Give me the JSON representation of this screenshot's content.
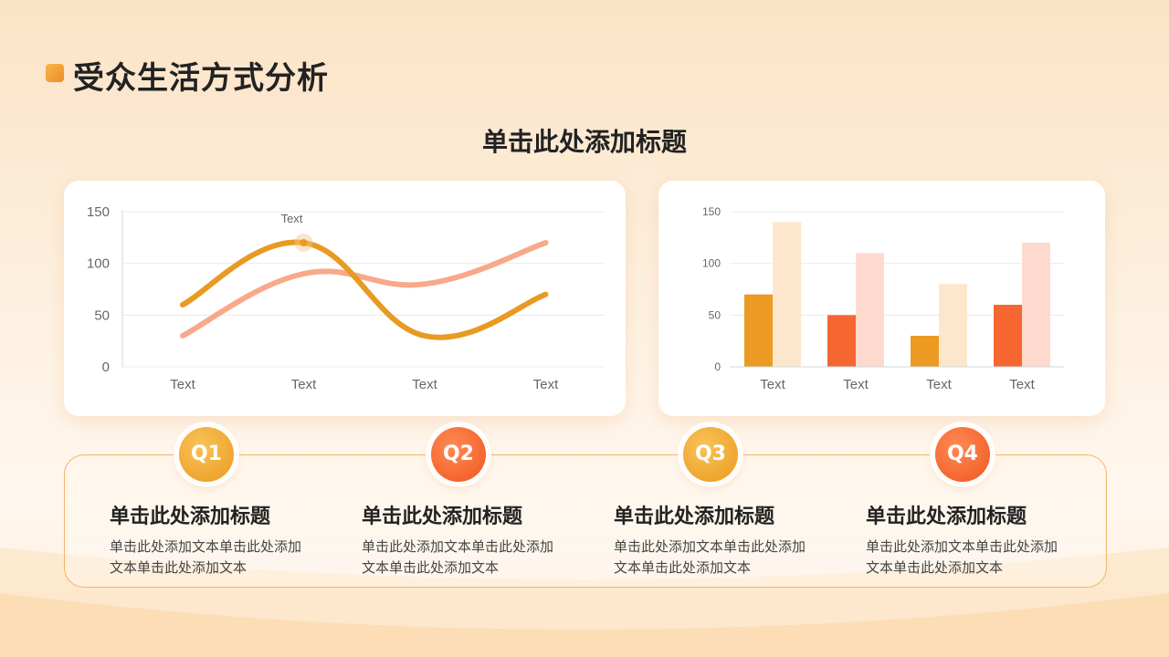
{
  "page": {
    "title": "受众生活方式分析",
    "subtitle": "单击此处添加标题"
  },
  "chart_data": [
    {
      "type": "line",
      "categories": [
        "Text",
        "Text",
        "Text",
        "Text"
      ],
      "ylim": [
        0,
        150
      ],
      "yticks": [
        0,
        50,
        100,
        150
      ],
      "grid": true,
      "series": [
        {
          "values": [
            30,
            90,
            80,
            120
          ],
          "color": "#f7a98a"
        },
        {
          "values": [
            60,
            120,
            30,
            70
          ],
          "color": "#e89a23"
        }
      ],
      "annotation": {
        "text": "Text",
        "category_index": 1,
        "series_index": 1
      }
    },
    {
      "type": "bar",
      "categories": [
        "Text",
        "Text",
        "Text",
        "Text"
      ],
      "ylim": [
        0,
        150
      ],
      "yticks": [
        0,
        50,
        100,
        150
      ],
      "grid": true,
      "series": [
        {
          "values": [
            70,
            50,
            30,
            60
          ],
          "colors": [
            "#eb9a22",
            "#f66630",
            "#eb9a22",
            "#f66630"
          ]
        },
        {
          "values": [
            140,
            110,
            80,
            120
          ],
          "colors": [
            "#fde7cc",
            "#fdd9ce",
            "#fde7cc",
            "#fdd9ce"
          ]
        }
      ]
    }
  ],
  "quarters": [
    {
      "badge": "Q1",
      "title": "单击此处添加标题",
      "text": "单击此处添加文本单击此处添加文本单击此处添加文本"
    },
    {
      "badge": "Q2",
      "title": "单击此处添加标题",
      "text": "单击此处添加文本单击此处添加文本单击此处添加文本"
    },
    {
      "badge": "Q3",
      "title": "单击此处添加标题",
      "text": "单击此处添加文本单击此处添加文本单击此处添加文本"
    },
    {
      "badge": "Q4",
      "title": "单击此处添加标题",
      "text": "单击此处添加文本单击此处添加文本单击此处添加文本"
    }
  ],
  "colors": {
    "accent_gold": "#eb9a22",
    "accent_red": "#f66630",
    "panel_border": "#f3b46a"
  }
}
